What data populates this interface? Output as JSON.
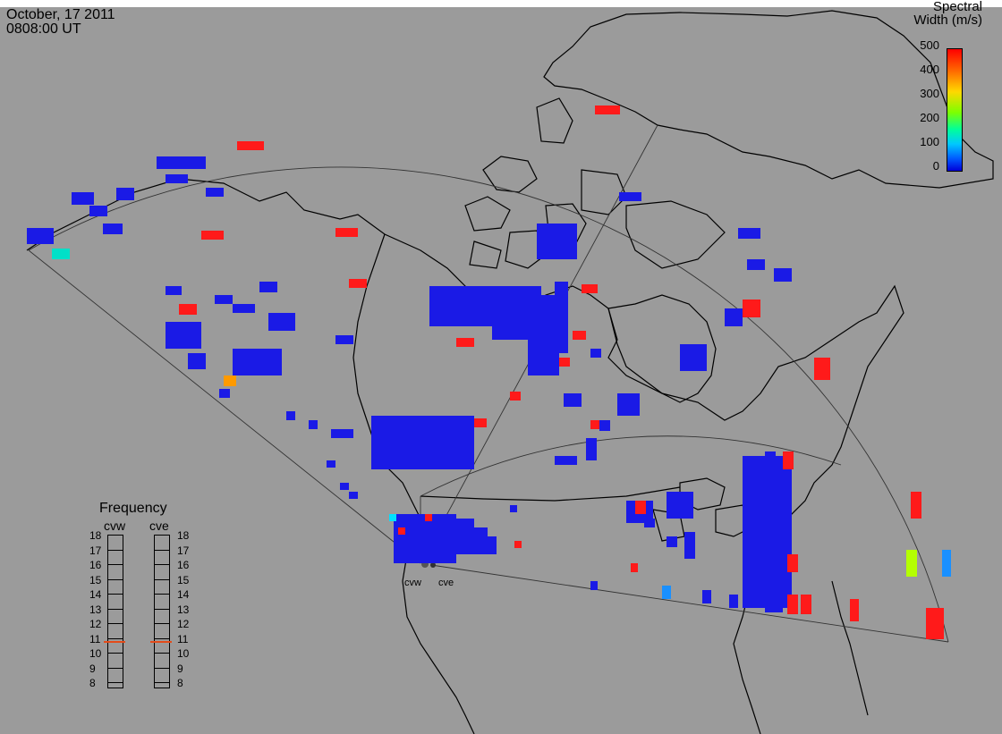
{
  "header": {
    "date": "October, 17 2011",
    "time": "0808:00 UT"
  },
  "colorbar": {
    "title_line1": "Spectral",
    "title_line2": "Width (m/s)",
    "ticks": [
      "500",
      "400",
      "300",
      "200",
      "100",
      "0"
    ],
    "min_value": 0,
    "max_value": 500
  },
  "frequency_panel": {
    "title": "Frequency",
    "radars": [
      {
        "name": "cvw",
        "current_frequency_mhz": 10.8
      },
      {
        "name": "cve",
        "current_frequency_mhz": 10.8
      }
    ],
    "scale": [
      "18",
      "17",
      "16",
      "15",
      "14",
      "13",
      "12",
      "11",
      "10",
      "9",
      "8"
    ]
  },
  "sites": {
    "west_label": "cvw",
    "east_label": "cve"
  },
  "colors": {
    "background": "#9b9b9b",
    "low_width": "#1a1ae6",
    "high_width": "#ff1a1a",
    "frequency_marker": "#e44b1a"
  }
}
